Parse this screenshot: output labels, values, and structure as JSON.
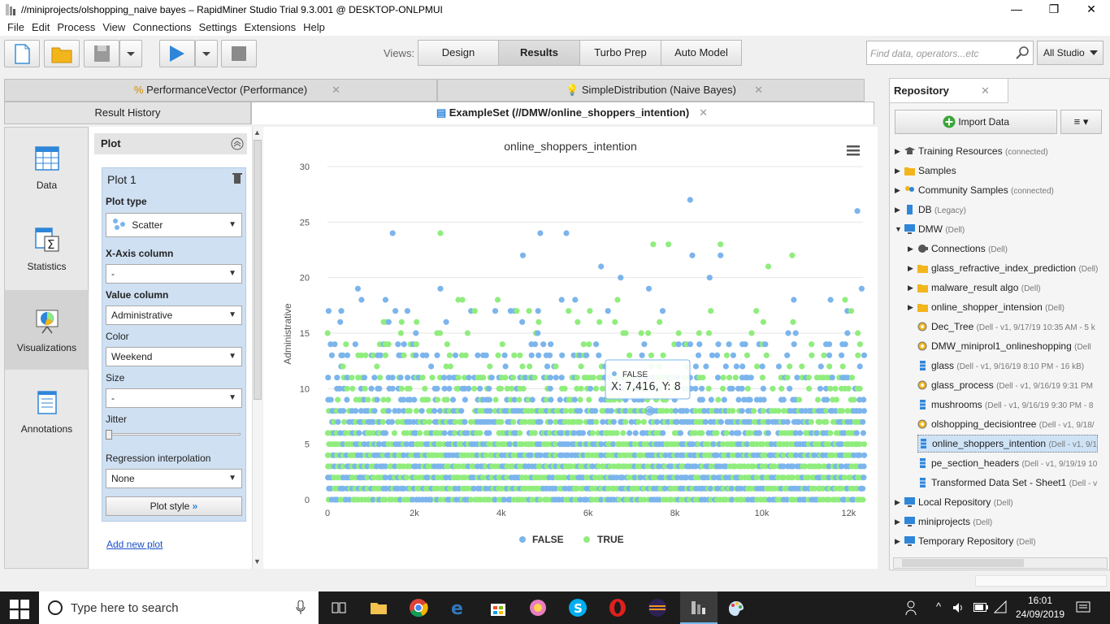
{
  "window": {
    "title": "//miniprojects/olshopping_naive bayes – RapidMiner Studio Trial 9.3.001 @ DESKTOP-ONLPMUI",
    "minimize": "—",
    "maximize": "❐",
    "close": "✕"
  },
  "menu": [
    "File",
    "Edit",
    "Process",
    "View",
    "Connections",
    "Settings",
    "Extensions",
    "Help"
  ],
  "toolbar": {
    "views_label": "Views:",
    "views": [
      "Design",
      "Results",
      "Turbo Prep",
      "Auto Model"
    ],
    "active_view": "Results",
    "search_placeholder": "Find data, operators...etc",
    "scope": "All Studio"
  },
  "tabs_top": [
    {
      "label": "PerformanceVector (Performance)"
    },
    {
      "label": "SimpleDistribution (Naive Bayes)"
    }
  ],
  "result_history": "Result History",
  "active_tab": "ExampleSet (//DMW/online_shoppers_intention)",
  "nav": [
    {
      "label": "Data"
    },
    {
      "label": "Statistics"
    },
    {
      "label": "Visualizations"
    },
    {
      "label": "Annotations"
    }
  ],
  "plot_panel": {
    "header": "Plot",
    "plot_name": "Plot 1",
    "plot_type_label": "Plot type",
    "plot_type": "Scatter",
    "x_axis_label": "X-Axis column",
    "x_axis": "-",
    "value_label": "Value column",
    "value": "Administrative",
    "color_label": "Color",
    "color": "Weekend",
    "size_label": "Size",
    "size": "-",
    "jitter_label": "Jitter",
    "regression_label": "Regression interpolation",
    "regression": "None",
    "plot_style": "Plot style",
    "add_new_plot": "Add new plot"
  },
  "chart_data": {
    "type": "scatter",
    "title": "online_shoppers_intention",
    "ylabel": "Administrative",
    "xlabel": "",
    "xlim": [
      0,
      12330
    ],
    "ylim": [
      0,
      30
    ],
    "x_ticks": [
      "0",
      "2k",
      "4k",
      "6k",
      "8k",
      "10k",
      "12k"
    ],
    "y_ticks": [
      "0",
      "5",
      "10",
      "15",
      "20",
      "25",
      "30"
    ],
    "legend": [
      "FALSE",
      "TRUE"
    ],
    "legend_position": "bottom",
    "grid": true,
    "series_colors": {
      "FALSE": "#7cb5ec",
      "TRUE": "#90ed7d"
    },
    "tooltip": {
      "series": "FALSE",
      "text": "X: 7,416, Y: 8"
    },
    "highlight_points": [
      {
        "series": "FALSE",
        "x": 8350,
        "y": 27
      },
      {
        "series": "FALSE",
        "x": 12200,
        "y": 26
      },
      {
        "series": "FALSE",
        "x": 1500,
        "y": 24
      },
      {
        "series": "TRUE",
        "x": 2600,
        "y": 24
      },
      {
        "series": "FALSE",
        "x": 4900,
        "y": 24
      },
      {
        "series": "FALSE",
        "x": 5500,
        "y": 24
      },
      {
        "series": "TRUE",
        "x": 7500,
        "y": 23
      },
      {
        "series": "TRUE",
        "x": 7850,
        "y": 23
      },
      {
        "series": "TRUE",
        "x": 9050,
        "y": 23
      },
      {
        "series": "FALSE",
        "x": 4500,
        "y": 22
      },
      {
        "series": "FALSE",
        "x": 8400,
        "y": 22
      },
      {
        "series": "FALSE",
        "x": 9050,
        "y": 22
      },
      {
        "series": "TRUE",
        "x": 10700,
        "y": 22
      },
      {
        "series": "FALSE",
        "x": 6300,
        "y": 21
      },
      {
        "series": "TRUE",
        "x": 10150,
        "y": 21
      },
      {
        "series": "FALSE",
        "x": 6750,
        "y": 20
      },
      {
        "series": "FALSE",
        "x": 8800,
        "y": 20
      },
      {
        "series": "FALSE",
        "x": 700,
        "y": 19
      },
      {
        "series": "FALSE",
        "x": 2600,
        "y": 19
      },
      {
        "series": "FALSE",
        "x": 12300,
        "y": 19
      },
      {
        "series": "FALSE",
        "x": 7400,
        "y": 19
      },
      {
        "series": "FALSE",
        "x": 7416,
        "y": 8
      }
    ]
  },
  "repository": {
    "title": "Repository",
    "import": "Import Data",
    "items": [
      {
        "name": "Training Resources",
        "meta": "(connected)",
        "level": 0,
        "icon": "graduation-icon"
      },
      {
        "name": "Samples",
        "meta": "",
        "level": 0,
        "icon": "folder-icon"
      },
      {
        "name": "Community Samples",
        "meta": "(connected)",
        "level": 0,
        "icon": "people-icon"
      },
      {
        "name": "DB",
        "meta": "(Legacy)",
        "level": 0,
        "icon": "database-icon"
      },
      {
        "name": "DMW",
        "meta": "(Dell)",
        "level": 0,
        "icon": "computer-icon"
      },
      {
        "name": "Connections",
        "meta": "(Dell)",
        "level": 1,
        "icon": "plug-icon"
      },
      {
        "name": "glass_refractive_index_prediction",
        "meta": "(Dell)",
        "level": 1,
        "icon": "folder-icon"
      },
      {
        "name": "malware_result algo",
        "meta": "(Dell)",
        "level": 1,
        "icon": "folder-icon"
      },
      {
        "name": "online_shopper_intension",
        "meta": "(Dell)",
        "level": 1,
        "icon": "folder-icon"
      },
      {
        "name": "Dec_Tree",
        "meta": "(Dell - v1, 9/17/19 10:35 AM - 5 k",
        "level": 1,
        "icon": "process-icon"
      },
      {
        "name": "DMW_miniprol1_onlineshopping",
        "meta": "(Dell",
        "level": 1,
        "icon": "process-icon"
      },
      {
        "name": "glass",
        "meta": "(Dell - v1, 9/16/19 8:10 PM - 16 kB)",
        "level": 1,
        "icon": "data-icon"
      },
      {
        "name": "glass_process",
        "meta": "(Dell - v1, 9/16/19 9:31 PM",
        "level": 1,
        "icon": "process-icon"
      },
      {
        "name": "mushrooms",
        "meta": "(Dell - v1, 9/16/19 9:30 PM - 8",
        "level": 1,
        "icon": "data-icon"
      },
      {
        "name": "olshopping_decisiontree",
        "meta": "(Dell - v1, 9/18/",
        "level": 1,
        "icon": "process-icon"
      },
      {
        "name": "online_shoppers_intention",
        "meta": "(Dell - v1, 9/1",
        "level": 1,
        "icon": "data-icon",
        "selected": true
      },
      {
        "name": "pe_section_headers",
        "meta": "(Dell - v1, 9/19/19 10",
        "level": 1,
        "icon": "data-icon"
      },
      {
        "name": "Transformed Data Set - Sheet1",
        "meta": "(Dell - v",
        "level": 1,
        "icon": "data-icon"
      },
      {
        "name": "Local Repository",
        "meta": "(Dell)",
        "level": 0,
        "icon": "computer-icon"
      },
      {
        "name": "miniprojects",
        "meta": "(Dell)",
        "level": 0,
        "icon": "computer-icon"
      },
      {
        "name": "Temporary Repository",
        "meta": "(Dell)",
        "level": 0,
        "icon": "computer-icon"
      }
    ]
  },
  "taskbar": {
    "search_placeholder": "Type here to search",
    "time": "16:01",
    "date": "24/09/2019"
  }
}
